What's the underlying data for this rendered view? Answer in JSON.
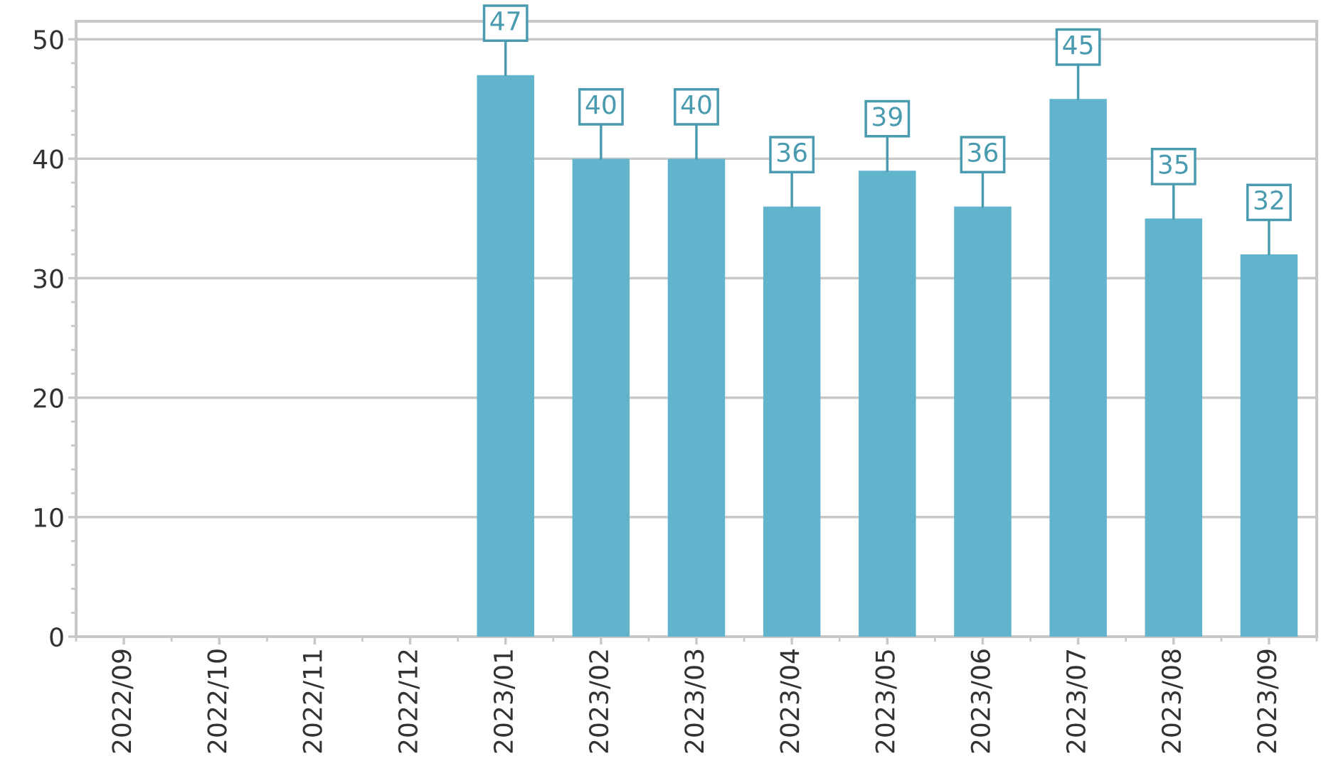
{
  "chart_data": {
    "type": "bar",
    "categories": [
      "2022/09",
      "2022/10",
      "2022/11",
      "2022/12",
      "2023/01",
      "2023/02",
      "2023/03",
      "2023/04",
      "2023/05",
      "2023/06",
      "2023/07",
      "2023/08",
      "2023/09"
    ],
    "values": [
      null,
      null,
      null,
      null,
      47,
      40,
      40,
      36,
      39,
      36,
      45,
      35,
      32
    ],
    "color": "#62b3cc",
    "ylim": [
      0,
      51.5
    ],
    "yticks": [
      0,
      10,
      20,
      30,
      40,
      50
    ],
    "grid": "y",
    "data_labels": true
  }
}
